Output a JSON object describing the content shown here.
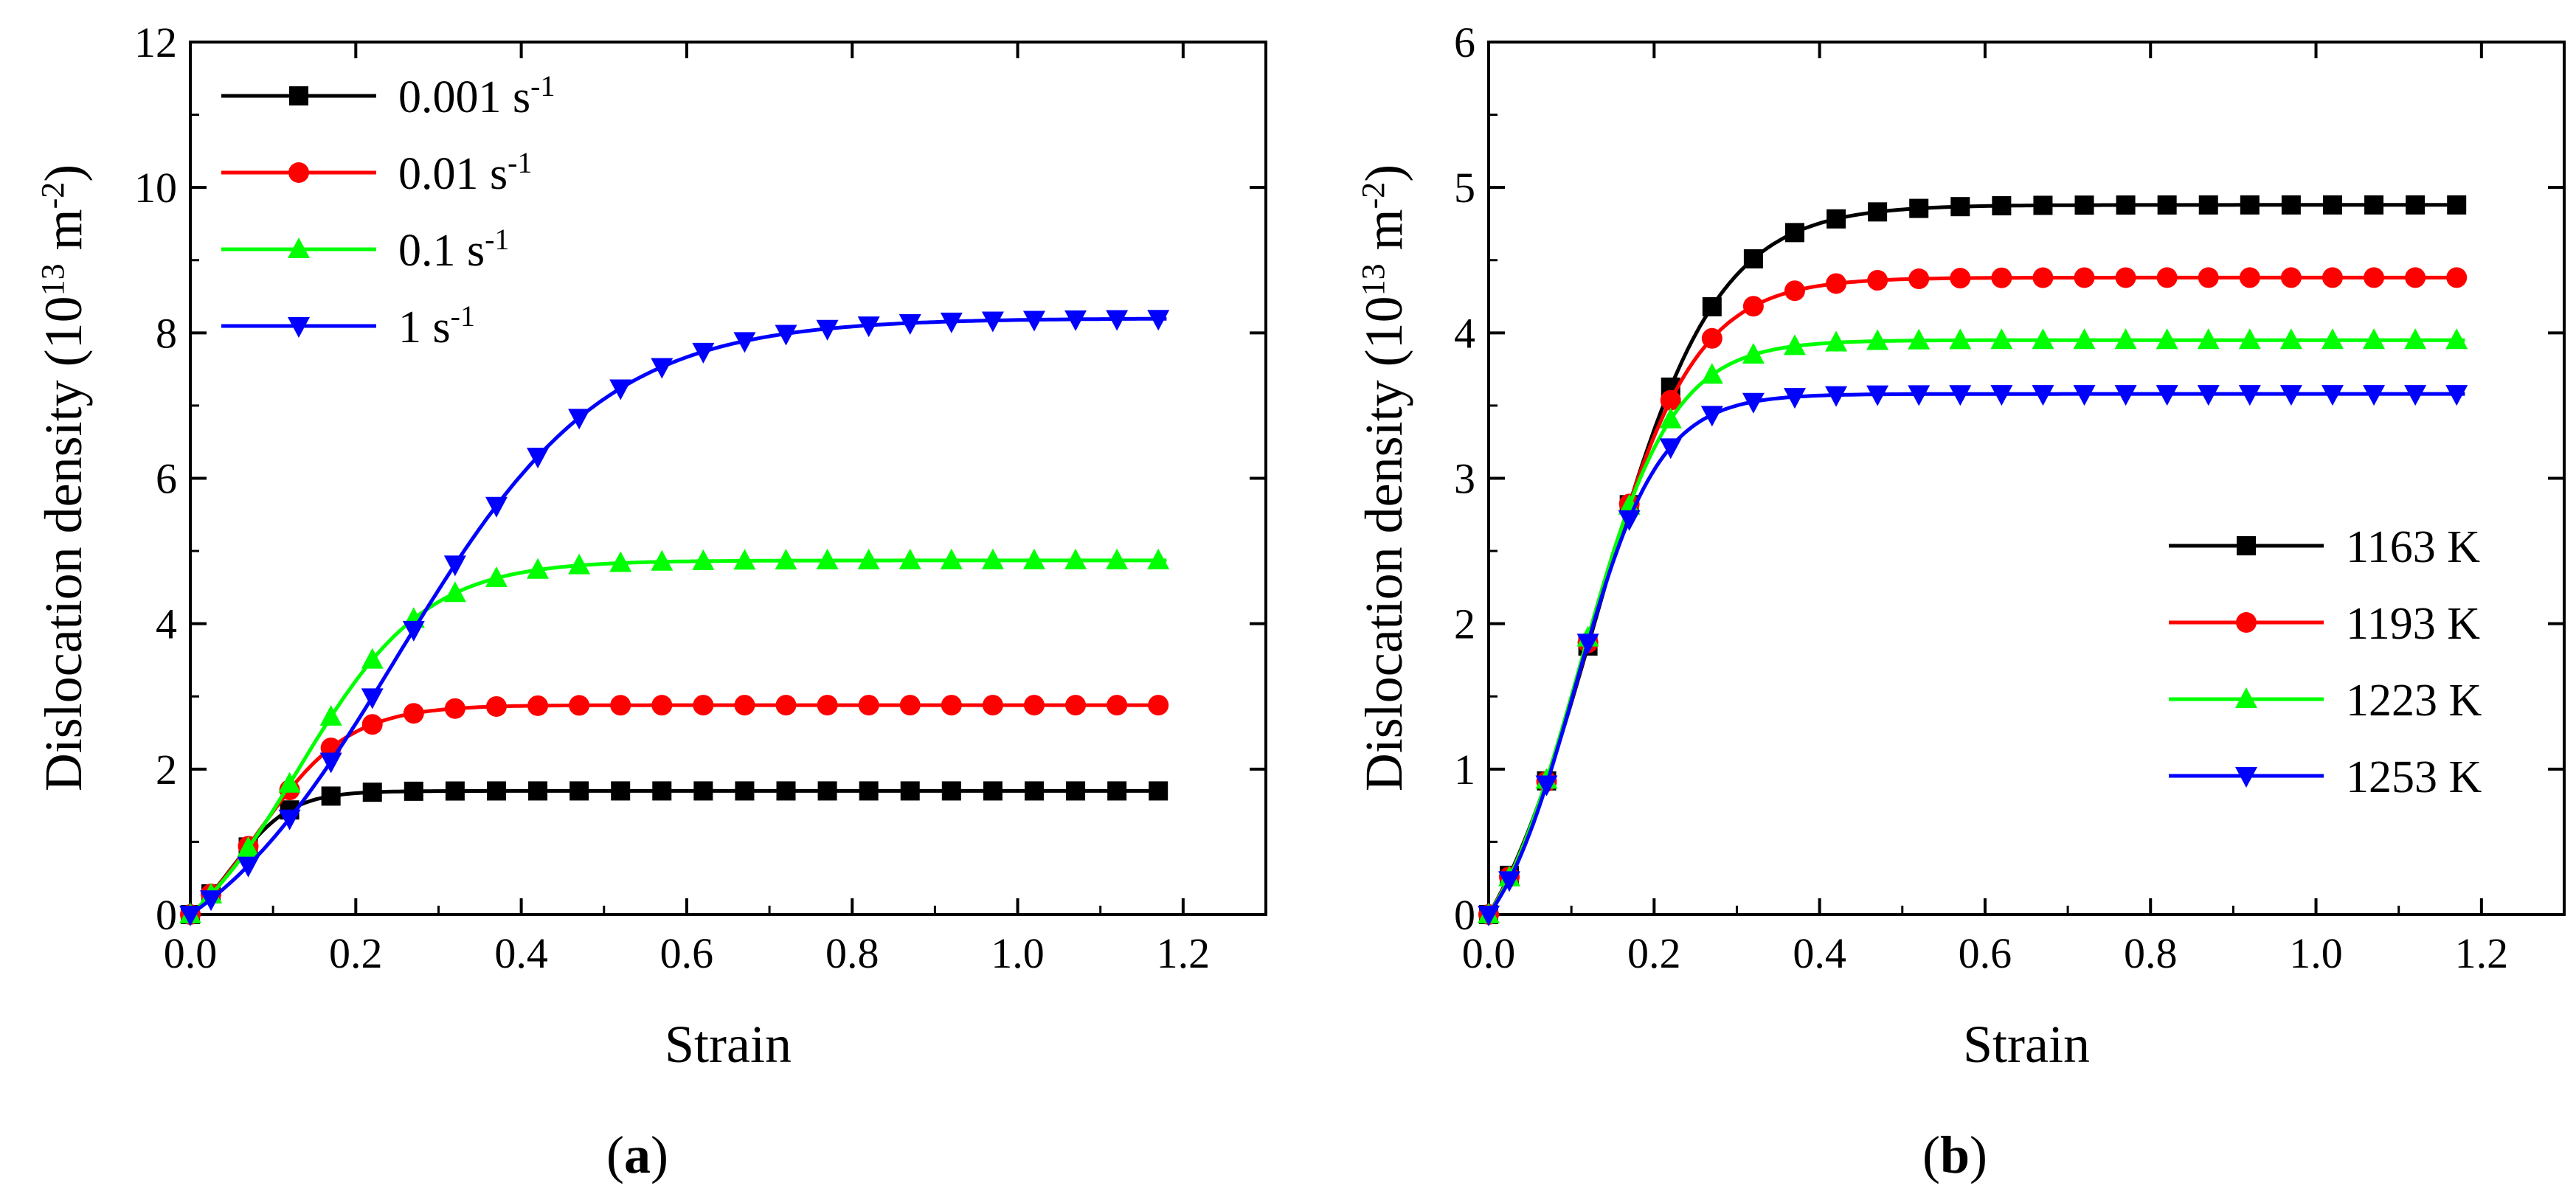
{
  "figure": {
    "panel_a_label": "a",
    "panel_b_label": "b"
  },
  "chart_data": [
    {
      "type": "line",
      "panel": "a",
      "xlabel": "Strain",
      "ylabel_main": "Dislocation density (10",
      "ylabel_exp1": "13",
      "ylabel_unit": " m",
      "ylabel_exp2": "-2",
      "ylabel_close": ")",
      "xlim": [
        0,
        1.3
      ],
      "ylim": [
        0,
        12
      ],
      "xticks": [
        0,
        0.2,
        0.4,
        0.6,
        0.8,
        1.0,
        1.2
      ],
      "xtick_labels": [
        "0.0",
        "0.2",
        "0.4",
        "0.6",
        "0.8",
        "1.0",
        "1.2"
      ],
      "yticks": [
        0,
        2,
        4,
        6,
        8,
        10,
        12
      ],
      "ytick_labels": [
        "0",
        "2",
        "4",
        "6",
        "8",
        "10",
        "12"
      ],
      "legend_position": "top-left",
      "series": [
        {
          "name": "0.001 s",
          "sup": "-1",
          "color": "#000000",
          "marker": "square",
          "k": 28,
          "x0": 0.05,
          "plateau": 1.7
        },
        {
          "name": "0.01 s",
          "sup": "-1",
          "color": "#ff0000",
          "marker": "circle",
          "k": 18,
          "x0": 0.08,
          "plateau": 2.88
        },
        {
          "name": "0.1 s",
          "sup": "-1",
          "color": "#00ff00",
          "marker": "triangle-up",
          "k": 13,
          "x0": 0.13,
          "plateau": 4.87
        },
        {
          "name": "1 s",
          "sup": "-1",
          "color": "#0000ff",
          "marker": "triangle-down",
          "k": 8,
          "x0": 0.25,
          "plateau": 8.2
        }
      ]
    },
    {
      "type": "line",
      "panel": "b",
      "xlabel": "Strain",
      "ylabel_main": "Dislocation density (10",
      "ylabel_exp1": "13",
      "ylabel_unit": " m",
      "ylabel_exp2": "-2",
      "ylabel_close": ")",
      "xlim": [
        0,
        1.3
      ],
      "ylim": [
        0,
        6
      ],
      "xticks": [
        0,
        0.2,
        0.4,
        0.6,
        0.8,
        1.0,
        1.2
      ],
      "xtick_labels": [
        "0.0",
        "0.2",
        "0.4",
        "0.6",
        "0.8",
        "1.0",
        "1.2"
      ],
      "yticks": [
        0,
        1,
        2,
        3,
        4,
        5,
        6
      ],
      "ytick_labels": [
        "0",
        "1",
        "2",
        "3",
        "4",
        "5",
        "6"
      ],
      "legend_position": "bottom-right",
      "series": [
        {
          "name": "1163 K",
          "sup": "",
          "color": "#000000",
          "marker": "square",
          "k": 14,
          "x0": 0.13,
          "plateau": 4.88
        },
        {
          "name": "1193 K",
          "sup": "",
          "color": "#ff0000",
          "marker": "circle",
          "k": 16,
          "x0": 0.12,
          "plateau": 4.38
        },
        {
          "name": "1223 K",
          "sup": "",
          "color": "#00ff00",
          "marker": "triangle-up",
          "k": 18,
          "x0": 0.11,
          "plateau": 3.95
        },
        {
          "name": "1253 K",
          "sup": "",
          "color": "#0000ff",
          "marker": "triangle-down",
          "k": 20,
          "x0": 0.105,
          "plateau": 3.58
        }
      ]
    }
  ]
}
